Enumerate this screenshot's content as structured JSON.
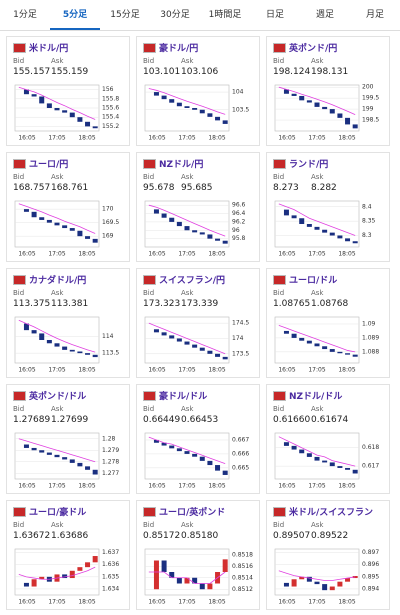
{
  "tabs": [
    "1分足",
    "5分足",
    "15分足",
    "30分足",
    "1時間足",
    "日足",
    "週足",
    "月足"
  ],
  "active_tab": 1,
  "bid_label": "Bid",
  "ask_label": "Ask",
  "cards": [
    {
      "name": "米ドル/円",
      "bid": "155.157",
      "ask": "155.159"
    },
    {
      "name": "豪ドル/円",
      "bid": "103.101",
      "ask": "103.106"
    },
    {
      "name": "英ポンド/円",
      "bid": "198.124",
      "ask": "198.131"
    },
    {
      "name": "ユーロ/円",
      "bid": "168.757",
      "ask": "168.761"
    },
    {
      "name": "NZドル/円",
      "bid": "95.678",
      "ask": "95.685"
    },
    {
      "name": "ランド/円",
      "bid": "8.273",
      "ask": "8.282"
    },
    {
      "name": "カナダドル/円",
      "bid": "113.375",
      "ask": "113.381"
    },
    {
      "name": "スイスフラン/円",
      "bid": "173.323",
      "ask": "173.339"
    },
    {
      "name": "ユーロ/ドル",
      "bid": "1.08765",
      "ask": "1.08768"
    },
    {
      "name": "英ポンド/ドル",
      "bid": "1.27689",
      "ask": "1.27699"
    },
    {
      "name": "豪ドル/ドル",
      "bid": "0.66449",
      "ask": "0.66453"
    },
    {
      "name": "NZドル/ドル",
      "bid": "0.61660",
      "ask": "0.61674"
    },
    {
      "name": "ユーロ/豪ドル",
      "bid": "1.63672",
      "ask": "1.63686"
    },
    {
      "name": "ユーロ/英ポンド",
      "bid": "0.85172",
      "ask": "0.85180"
    },
    {
      "name": "米ドル/スイスフラン",
      "bid": "0.89507",
      "ask": "0.89522"
    }
  ],
  "chart_data": [
    {
      "type": "candlestick",
      "xticks": [
        "16:05",
        "17:05",
        "18:05"
      ],
      "ylim": [
        155.1,
        156.1
      ],
      "yticks": [
        156,
        155.8,
        155.6,
        155.4,
        155.2
      ],
      "values": [
        156.0,
        155.9,
        155.85,
        155.7,
        155.6,
        155.55,
        155.5,
        155.4,
        155.3,
        155.2,
        155.16
      ],
      "ma": [
        156.05,
        156.0,
        155.95,
        155.88,
        155.8,
        155.72,
        155.65,
        155.57,
        155.5,
        155.42,
        155.35
      ],
      "up_color": "#d32f2f",
      "down_color": "#1a2f80",
      "ma_color": "#e040e0"
    },
    {
      "type": "candlestick",
      "xticks": [
        "16:05",
        "17:05",
        "18:05"
      ],
      "ylim": [
        102.9,
        104.2
      ],
      "yticks": [
        104,
        103.5
      ],
      "values": [
        104.0,
        103.9,
        103.8,
        103.7,
        103.6,
        103.55,
        103.5,
        103.4,
        103.3,
        103.2,
        103.1
      ],
      "ma": [
        104.1,
        104.05,
        103.98,
        103.9,
        103.82,
        103.74,
        103.67,
        103.6,
        103.52,
        103.44,
        103.37
      ],
      "up_color": "#d32f2f",
      "down_color": "#1a2f80",
      "ma_color": "#e040e0"
    },
    {
      "type": "candlestick",
      "xticks": [
        "16:05",
        "17:05",
        "18:05"
      ],
      "ylim": [
        198,
        200.1
      ],
      "yticks": [
        200,
        199.5,
        199,
        198.5
      ],
      "values": [
        199.9,
        199.7,
        199.6,
        199.4,
        199.3,
        199.1,
        199.0,
        198.8,
        198.6,
        198.3,
        198.12
      ],
      "ma": [
        200.0,
        199.9,
        199.8,
        199.68,
        199.57,
        199.45,
        199.33,
        199.2,
        199.05,
        198.9,
        198.75
      ],
      "up_color": "#d32f2f",
      "down_color": "#1a2f80",
      "ma_color": "#e040e0"
    },
    {
      "type": "candlestick",
      "xticks": [
        "16:05",
        "17:05",
        "18:05"
      ],
      "ylim": [
        168.6,
        170.3
      ],
      "yticks": [
        170,
        169.5,
        169
      ],
      "values": [
        170.0,
        169.9,
        169.7,
        169.6,
        169.5,
        169.4,
        169.3,
        169.2,
        169.0,
        168.9,
        168.76
      ],
      "ma": [
        170.2,
        170.1,
        170.0,
        169.9,
        169.78,
        169.67,
        169.55,
        169.45,
        169.35,
        169.22,
        169.1
      ],
      "up_color": "#d32f2f",
      "down_color": "#1a2f80",
      "ma_color": "#e040e0"
    },
    {
      "type": "candlestick",
      "xticks": [
        "16:05",
        "17:05",
        "18:05"
      ],
      "ylim": [
        95.6,
        96.7
      ],
      "yticks": [
        96.6,
        96.4,
        96.2,
        96,
        95.8
      ],
      "values": [
        96.5,
        96.4,
        96.3,
        96.2,
        96.1,
        96.0,
        95.95,
        95.9,
        95.8,
        95.75,
        95.68
      ],
      "ma": [
        96.6,
        96.55,
        96.48,
        96.4,
        96.32,
        96.24,
        96.16,
        96.08,
        96.0,
        95.93,
        95.86
      ],
      "up_color": "#d32f2f",
      "down_color": "#1a2f80",
      "ma_color": "#e040e0"
    },
    {
      "type": "candlestick",
      "xticks": [
        "16:05",
        "17:05",
        "18:05"
      ],
      "ylim": [
        8.26,
        8.42
      ],
      "yticks": [
        8.4,
        8.35,
        8.3
      ],
      "values": [
        8.39,
        8.37,
        8.36,
        8.34,
        8.33,
        8.32,
        8.31,
        8.3,
        8.29,
        8.28,
        8.273
      ],
      "ma": [
        8.41,
        8.4,
        8.39,
        8.375,
        8.36,
        8.35,
        8.34,
        8.33,
        8.32,
        8.31,
        8.3
      ],
      "up_color": "#d32f2f",
      "down_color": "#1a2f80",
      "ma_color": "#e040e0"
    },
    {
      "type": "candlestick",
      "xticks": [
        "16:05",
        "17:05",
        "18:05"
      ],
      "ylim": [
        113.2,
        114.6
      ],
      "yticks": [
        114,
        113.5
      ],
      "values": [
        114.4,
        114.2,
        114.1,
        113.9,
        113.8,
        113.7,
        113.6,
        113.55,
        113.5,
        113.45,
        113.38
      ],
      "ma": [
        114.5,
        114.4,
        114.3,
        114.18,
        114.06,
        113.95,
        113.85,
        113.76,
        113.68,
        113.6,
        113.53
      ],
      "up_color": "#d32f2f",
      "down_color": "#1a2f80",
      "ma_color": "#e040e0"
    },
    {
      "type": "candlestick",
      "xticks": [
        "16:05",
        "17:05",
        "18:05"
      ],
      "ylim": [
        173.2,
        174.7
      ],
      "yticks": [
        174.5,
        174,
        173.5
      ],
      "values": [
        174.3,
        174.2,
        174.1,
        174.0,
        173.9,
        173.8,
        173.7,
        173.6,
        173.5,
        173.4,
        173.32
      ],
      "ma": [
        174.5,
        174.4,
        174.3,
        174.2,
        174.1,
        174.0,
        173.9,
        173.8,
        173.7,
        173.6,
        173.5
      ],
      "up_color": "#d32f2f",
      "down_color": "#1a2f80",
      "ma_color": "#e040e0"
    },
    {
      "type": "candlestick",
      "xticks": [
        "16:05",
        "17:05",
        "18:05"
      ],
      "ylim": [
        1.0872,
        1.0905
      ],
      "yticks": [
        1.09,
        1.089,
        1.088
      ],
      "values": [
        1.0895,
        1.0893,
        1.089,
        1.0888,
        1.0886,
        1.0884,
        1.0882,
        1.088,
        1.0879,
        1.0878,
        1.08765
      ],
      "ma": [
        1.0899,
        1.0897,
        1.0895,
        1.0893,
        1.0891,
        1.0889,
        1.0887,
        1.0885,
        1.0883,
        1.0881,
        1.088
      ],
      "up_color": "#d32f2f",
      "down_color": "#1a2f80",
      "ma_color": "#e040e0"
    },
    {
      "type": "candlestick",
      "xticks": [
        "16:05",
        "17:05",
        "18:05"
      ],
      "ylim": [
        1.2765,
        1.2805
      ],
      "yticks": [
        1.28,
        1.279,
        1.278,
        1.277
      ],
      "values": [
        1.2795,
        1.2792,
        1.279,
        1.2788,
        1.2786,
        1.2784,
        1.2782,
        1.2779,
        1.2776,
        1.2773,
        1.27689
      ],
      "ma": [
        1.28,
        1.2798,
        1.2796,
        1.2794,
        1.2792,
        1.279,
        1.2788,
        1.2786,
        1.2784,
        1.2782,
        1.278
      ],
      "up_color": "#d32f2f",
      "down_color": "#1a2f80",
      "ma_color": "#e040e0"
    },
    {
      "type": "candlestick",
      "xticks": [
        "16:05",
        "17:05",
        "18:05"
      ],
      "ylim": [
        0.6642,
        0.6675
      ],
      "yticks": [
        0.667,
        0.666,
        0.665
      ],
      "values": [
        0.667,
        0.6668,
        0.6666,
        0.6664,
        0.6662,
        0.666,
        0.6658,
        0.6655,
        0.6652,
        0.6648,
        0.66449
      ],
      "ma": [
        0.6672,
        0.667,
        0.6668,
        0.6667,
        0.6665,
        0.6663,
        0.6661,
        0.6659,
        0.6657,
        0.6655,
        0.6653
      ],
      "up_color": "#d32f2f",
      "down_color": "#1a2f80",
      "ma_color": "#e040e0"
    },
    {
      "type": "candlestick",
      "xticks": [
        "16:05",
        "17:05",
        "18:05"
      ],
      "ylim": [
        0.6163,
        0.6188
      ],
      "yticks": [
        0.618,
        0.617
      ],
      "values": [
        0.6183,
        0.6181,
        0.6179,
        0.6177,
        0.6175,
        0.6173,
        0.6172,
        0.617,
        0.6169,
        0.6168,
        0.6166
      ],
      "ma": [
        0.6186,
        0.6184,
        0.6182,
        0.618,
        0.6178,
        0.6176,
        0.6175,
        0.6173,
        0.6172,
        0.6171,
        0.617
      ],
      "up_color": "#d32f2f",
      "down_color": "#1a2f80",
      "ma_color": "#e040e0"
    },
    {
      "type": "candlestick",
      "xticks": [
        "16:05",
        "17:05",
        "18:05"
      ],
      "ylim": [
        1.6335,
        1.6373
      ],
      "yticks": [
        1.637,
        1.636,
        1.635,
        1.634
      ],
      "values": [
        1.6345,
        1.6342,
        1.6348,
        1.635,
        1.6346,
        1.6352,
        1.6349,
        1.6355,
        1.6358,
        1.6362,
        1.63672
      ],
      "ma": [
        1.6352,
        1.635,
        1.6349,
        1.6348,
        1.6348,
        1.6349,
        1.635,
        1.6351,
        1.6353,
        1.6355,
        1.6358
      ],
      "up_color": "#d32f2f",
      "down_color": "#1a2f80",
      "ma_color": "#e040e0"
    },
    {
      "type": "candlestick",
      "xticks": [
        "16:05",
        "17:05",
        "18:05"
      ],
      "ylim": [
        0.8511,
        0.8519
      ],
      "yticks": [
        0.8518,
        0.8516,
        0.8514,
        0.8512
      ],
      "values": [
        0.8512,
        0.8517,
        0.8515,
        0.8514,
        0.8513,
        0.8514,
        0.8513,
        0.8512,
        0.8513,
        0.8515,
        0.85172
      ],
      "ma": [
        0.8515,
        0.8515,
        0.8515,
        0.8514,
        0.8514,
        0.8514,
        0.8513,
        0.8513,
        0.8513,
        0.8514,
        0.8515
      ],
      "up_color": "#d32f2f",
      "down_color": "#1a2f80",
      "ma_color": "#e040e0"
    },
    {
      "type": "candlestick",
      "xticks": [
        "16:05",
        "17:05",
        "18:05"
      ],
      "ylim": [
        0.8935,
        0.8973
      ],
      "yticks": [
        0.897,
        0.896,
        0.895,
        0.894
      ],
      "values": [
        0.8945,
        0.8942,
        0.8948,
        0.895,
        0.8946,
        0.8944,
        0.8939,
        0.8942,
        0.8946,
        0.8949,
        0.89507
      ],
      "ma": [
        0.8955,
        0.8953,
        0.8951,
        0.895,
        0.8949,
        0.8948,
        0.8947,
        0.8947,
        0.8948,
        0.8949,
        0.895
      ],
      "up_color": "#d32f2f",
      "down_color": "#1a2f80",
      "ma_color": "#e040e0"
    }
  ]
}
